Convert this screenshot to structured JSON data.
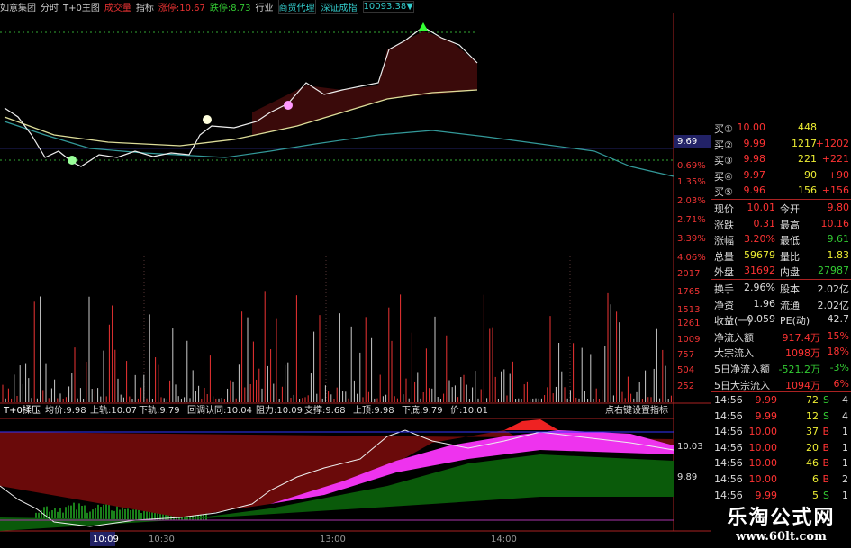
{
  "toolbar": [
    "如意集团",
    "分时",
    "T+0主图",
    "成交量",
    "指标",
    "涨停:10.67",
    "跌停:8.73",
    "行业",
    "商贸代理",
    "深证成指",
    "10093.38▼"
  ],
  "price_axis": [
    "9.69",
    "0.69%",
    "1.35%",
    "2.03%",
    "2.71%",
    "3.39%",
    "4.06%"
  ],
  "volume_axis": [
    "2017",
    "1765",
    "1513",
    "1261",
    "1009",
    "757",
    "504",
    "252"
  ],
  "indicator_header": [
    "T+0揉压",
    "均价:9.98",
    "上轨:10.07",
    "下轨:9.79",
    "回调认同:10.04",
    "阻力:10.09",
    "支撑:9.68",
    "上顶:9.98",
    "下底:9.79",
    "价:10.01"
  ],
  "indicator_hint": "点右键设置指标",
  "indicator_axis": [
    "10.03",
    "9.89"
  ],
  "time_axis": [
    "10:09",
    "10:30",
    "13:00",
    "14:00"
  ],
  "order_book": [
    {
      "label": "买①",
      "price": "10.00",
      "volume": "448"
    },
    {
      "label": "买②",
      "price": "9.99",
      "volume": "1217",
      "change": "+1202"
    },
    {
      "label": "买③",
      "price": "9.98",
      "volume": "221",
      "change": "+221"
    },
    {
      "label": "买④",
      "price": "9.97",
      "volume": "90",
      "change": "+90"
    },
    {
      "label": "买⑤",
      "price": "9.96",
      "volume": "156",
      "change": "+156"
    }
  ],
  "quote": [
    {
      "l1": "现价",
      "v1": "10.01",
      "c1": "#f33",
      "l2": "今开",
      "v2": "9.80",
      "c2": "#f33"
    },
    {
      "l1": "涨跌",
      "v1": "0.31",
      "c1": "#f33",
      "l2": "最高",
      "v2": "10.16",
      "c2": "#f33"
    },
    {
      "l1": "涨幅",
      "v1": "3.20%",
      "c1": "#f33",
      "l2": "最低",
      "v2": "9.61",
      "c2": "#3c3"
    },
    {
      "l1": "总量",
      "v1": "59679",
      "c1": "#ee3",
      "l2": "量比",
      "v2": "1.83",
      "c2": "#ee3"
    },
    {
      "l1": "外盘",
      "v1": "31692",
      "c1": "#f33",
      "l2": "内盘",
      "v2": "27987",
      "c2": "#3c3"
    },
    {
      "l1": "换手",
      "v1": "2.96%",
      "c1": "#ddd",
      "l2": "股本",
      "v2": "2.02亿",
      "c2": "#ddd"
    },
    {
      "l1": "净资",
      "v1": "1.96",
      "c1": "#ddd",
      "l2": "流通",
      "v2": "2.02亿",
      "c2": "#ddd"
    },
    {
      "l1": "收益(一)",
      "v1": "0.059",
      "c1": "#ddd",
      "l2": "PE(动)",
      "v2": "42.7",
      "c2": "#ddd"
    }
  ],
  "flows": [
    {
      "label": "净流入额",
      "amount": "917.4万",
      "pct": "15%",
      "color": "#f33"
    },
    {
      "label": "大宗流入",
      "amount": "1098万",
      "pct": "18%",
      "color": "#f33"
    },
    {
      "label": "5日净流入额",
      "amount": "-521.2万",
      "pct": "-3%",
      "color": "#3c3"
    },
    {
      "label": "5日大宗流入",
      "amount": "1094万",
      "pct": "6%",
      "color": "#f33"
    }
  ],
  "trades": [
    {
      "time": "14:56",
      "price": "9.99",
      "volume": "72",
      "side": "S",
      "count": "4"
    },
    {
      "time": "14:56",
      "price": "9.99",
      "volume": "12",
      "side": "S",
      "count": "4"
    },
    {
      "time": "14:56",
      "price": "10.00",
      "volume": "37",
      "side": "B",
      "count": "1"
    },
    {
      "time": "14:56",
      "price": "10.00",
      "volume": "20",
      "side": "B",
      "count": "1"
    },
    {
      "time": "14:56",
      "price": "10.00",
      "volume": "46",
      "side": "B",
      "count": "1"
    },
    {
      "time": "14:56",
      "price": "10.00",
      "volume": "6",
      "side": "B",
      "count": "2"
    },
    {
      "time": "14:56",
      "price": "9.99",
      "volume": "5",
      "side": "S",
      "count": "1"
    }
  ],
  "watermark": {
    "title": "乐淘公式网",
    "url": "www.60lt.com"
  }
}
